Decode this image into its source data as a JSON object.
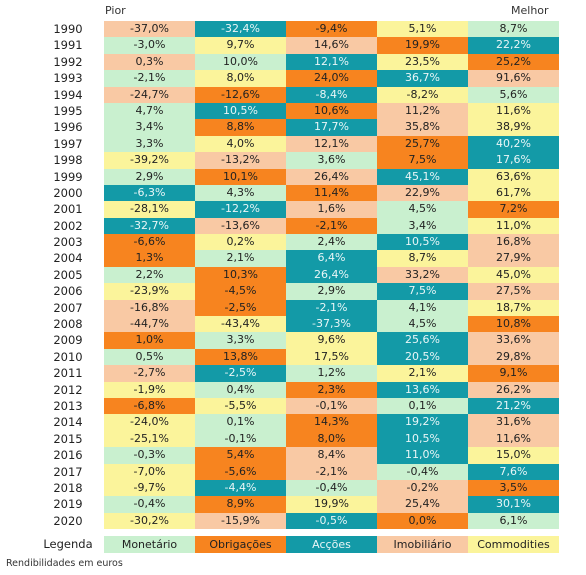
{
  "colors": {
    "mon": "#c9f0cf",
    "obr": "#f7841f",
    "acc": "#139aa7",
    "imo": "#f9c9a4",
    "com": "#fbf49b"
  },
  "header": {
    "worst": "Pior",
    "best": "Melhor"
  },
  "chart_data": {
    "type": "table",
    "columns": [
      "Monetário",
      "Obrigações",
      "Acções",
      "Imobiliário",
      "Commodities"
    ],
    "rows": [
      {
        "year": "1990",
        "cells": [
          {
            "v": "-37,0%",
            "c": "imo"
          },
          {
            "v": "-32,4%",
            "c": "acc"
          },
          {
            "v": "-9,4%",
            "c": "obr"
          },
          {
            "v": "5,1%",
            "c": "com"
          },
          {
            "v": "8,7%",
            "c": "mon"
          }
        ]
      },
      {
        "year": "1991",
        "cells": [
          {
            "v": "-3,0%",
            "c": "mon"
          },
          {
            "v": "9,7%",
            "c": "com"
          },
          {
            "v": "14,6%",
            "c": "imo"
          },
          {
            "v": "19,9%",
            "c": "obr"
          },
          {
            "v": "22,2%",
            "c": "acc"
          }
        ]
      },
      {
        "year": "1992",
        "cells": [
          {
            "v": "0,3%",
            "c": "imo"
          },
          {
            "v": "10,0%",
            "c": "mon"
          },
          {
            "v": "12,1%",
            "c": "acc"
          },
          {
            "v": "23,5%",
            "c": "com"
          },
          {
            "v": "25,2%",
            "c": "obr"
          }
        ]
      },
      {
        "year": "1993",
        "cells": [
          {
            "v": "-2,1%",
            "c": "mon"
          },
          {
            "v": "8,0%",
            "c": "com"
          },
          {
            "v": "24,0%",
            "c": "obr"
          },
          {
            "v": "36,7%",
            "c": "acc"
          },
          {
            "v": "91,6%",
            "c": "imo"
          }
        ]
      },
      {
        "year": "1994",
        "cells": [
          {
            "v": "-24,7%",
            "c": "imo"
          },
          {
            "v": "-12,6%",
            "c": "obr"
          },
          {
            "v": "-8,4%",
            "c": "acc"
          },
          {
            "v": "-8,2%",
            "c": "com"
          },
          {
            "v": "5,6%",
            "c": "mon"
          }
        ]
      },
      {
        "year": "1995",
        "cells": [
          {
            "v": "4,7%",
            "c": "mon"
          },
          {
            "v": "10,5%",
            "c": "acc"
          },
          {
            "v": "10,6%",
            "c": "obr"
          },
          {
            "v": "11,2%",
            "c": "imo"
          },
          {
            "v": "11,6%",
            "c": "com"
          }
        ]
      },
      {
        "year": "1996",
        "cells": [
          {
            "v": "3,4%",
            "c": "mon"
          },
          {
            "v": "8,8%",
            "c": "obr"
          },
          {
            "v": "17,7%",
            "c": "acc"
          },
          {
            "v": "35,8%",
            "c": "imo"
          },
          {
            "v": "38,9%",
            "c": "com"
          }
        ]
      },
      {
        "year": "1997",
        "cells": [
          {
            "v": "3,3%",
            "c": "mon"
          },
          {
            "v": "4,0%",
            "c": "com"
          },
          {
            "v": "12,1%",
            "c": "imo"
          },
          {
            "v": "25,7%",
            "c": "obr"
          },
          {
            "v": "40,2%",
            "c": "acc"
          }
        ]
      },
      {
        "year": "1998",
        "cells": [
          {
            "v": "-39,2%",
            "c": "com"
          },
          {
            "v": "-13,2%",
            "c": "imo"
          },
          {
            "v": "3,6%",
            "c": "mon"
          },
          {
            "v": "7,5%",
            "c": "obr"
          },
          {
            "v": "17,6%",
            "c": "acc"
          }
        ]
      },
      {
        "year": "1999",
        "cells": [
          {
            "v": "2,9%",
            "c": "mon"
          },
          {
            "v": "10,1%",
            "c": "obr"
          },
          {
            "v": "26,4%",
            "c": "imo"
          },
          {
            "v": "45,1%",
            "c": "acc"
          },
          {
            "v": "63,6%",
            "c": "com"
          }
        ]
      },
      {
        "year": "2000",
        "cells": [
          {
            "v": "-6,3%",
            "c": "acc"
          },
          {
            "v": "4,3%",
            "c": "mon"
          },
          {
            "v": "11,4%",
            "c": "obr"
          },
          {
            "v": "22,9%",
            "c": "imo"
          },
          {
            "v": "61,7%",
            "c": "com"
          }
        ]
      },
      {
        "year": "2001",
        "cells": [
          {
            "v": "-28,1%",
            "c": "com"
          },
          {
            "v": "-12,2%",
            "c": "acc"
          },
          {
            "v": "1,6%",
            "c": "imo"
          },
          {
            "v": "4,5%",
            "c": "mon"
          },
          {
            "v": "7,2%",
            "c": "obr"
          }
        ]
      },
      {
        "year": "2002",
        "cells": [
          {
            "v": "-32,7%",
            "c": "acc"
          },
          {
            "v": "-13,6%",
            "c": "imo"
          },
          {
            "v": "-2,1%",
            "c": "obr"
          },
          {
            "v": "3,4%",
            "c": "mon"
          },
          {
            "v": "11,0%",
            "c": "com"
          }
        ]
      },
      {
        "year": "2003",
        "cells": [
          {
            "v": "-6,6%",
            "c": "obr"
          },
          {
            "v": "0,2%",
            "c": "com"
          },
          {
            "v": "2,4%",
            "c": "mon"
          },
          {
            "v": "10,5%",
            "c": "acc"
          },
          {
            "v": "16,8%",
            "c": "imo"
          }
        ]
      },
      {
        "year": "2004",
        "cells": [
          {
            "v": "1,3%",
            "c": "obr"
          },
          {
            "v": "2,1%",
            "c": "mon"
          },
          {
            "v": "6,4%",
            "c": "acc"
          },
          {
            "v": "8,7%",
            "c": "com"
          },
          {
            "v": "27,9%",
            "c": "imo"
          }
        ]
      },
      {
        "year": "2005",
        "cells": [
          {
            "v": "2,2%",
            "c": "mon"
          },
          {
            "v": "10,3%",
            "c": "obr"
          },
          {
            "v": "26,4%",
            "c": "acc"
          },
          {
            "v": "33,2%",
            "c": "imo"
          },
          {
            "v": "45,0%",
            "c": "com"
          }
        ]
      },
      {
        "year": "2006",
        "cells": [
          {
            "v": "-23,9%",
            "c": "com"
          },
          {
            "v": "-4,5%",
            "c": "obr"
          },
          {
            "v": "2,9%",
            "c": "mon"
          },
          {
            "v": "7,5%",
            "c": "acc"
          },
          {
            "v": "27,5%",
            "c": "imo"
          }
        ]
      },
      {
        "year": "2007",
        "cells": [
          {
            "v": "-16,8%",
            "c": "imo"
          },
          {
            "v": "-2,5%",
            "c": "obr"
          },
          {
            "v": "-2,1%",
            "c": "acc"
          },
          {
            "v": "4,1%",
            "c": "mon"
          },
          {
            "v": "18,7%",
            "c": "com"
          }
        ]
      },
      {
        "year": "2008",
        "cells": [
          {
            "v": "-44,7%",
            "c": "imo"
          },
          {
            "v": "-43,4%",
            "c": "com"
          },
          {
            "v": "-37,3%",
            "c": "acc"
          },
          {
            "v": "4,5%",
            "c": "mon"
          },
          {
            "v": "10,8%",
            "c": "obr"
          }
        ]
      },
      {
        "year": "2009",
        "cells": [
          {
            "v": "1,0%",
            "c": "obr"
          },
          {
            "v": "3,3%",
            "c": "mon"
          },
          {
            "v": "9,6%",
            "c": "com"
          },
          {
            "v": "25,6%",
            "c": "acc"
          },
          {
            "v": "33,6%",
            "c": "imo"
          }
        ]
      },
      {
        "year": "2010",
        "cells": [
          {
            "v": "0,5%",
            "c": "mon"
          },
          {
            "v": "13,8%",
            "c": "obr"
          },
          {
            "v": "17,5%",
            "c": "com"
          },
          {
            "v": "20,5%",
            "c": "acc"
          },
          {
            "v": "29,8%",
            "c": "imo"
          }
        ]
      },
      {
        "year": "2011",
        "cells": [
          {
            "v": "-2,7%",
            "c": "imo"
          },
          {
            "v": "-2,5%",
            "c": "acc"
          },
          {
            "v": "1,2%",
            "c": "mon"
          },
          {
            "v": "2,1%",
            "c": "com"
          },
          {
            "v": "9,1%",
            "c": "obr"
          }
        ]
      },
      {
        "year": "2012",
        "cells": [
          {
            "v": "-1,9%",
            "c": "com"
          },
          {
            "v": "0,4%",
            "c": "mon"
          },
          {
            "v": "2,3%",
            "c": "obr"
          },
          {
            "v": "13,6%",
            "c": "acc"
          },
          {
            "v": "26,2%",
            "c": "imo"
          }
        ]
      },
      {
        "year": "2013",
        "cells": [
          {
            "v": "-6,8%",
            "c": "obr"
          },
          {
            "v": "-5,5%",
            "c": "com"
          },
          {
            "v": "-0,1%",
            "c": "imo"
          },
          {
            "v": "0,1%",
            "c": "mon"
          },
          {
            "v": "21,2%",
            "c": "acc"
          }
        ]
      },
      {
        "year": "2014",
        "cells": [
          {
            "v": "-24,0%",
            "c": "com"
          },
          {
            "v": "0,1%",
            "c": "mon"
          },
          {
            "v": "14,3%",
            "c": "obr"
          },
          {
            "v": "19,2%",
            "c": "acc"
          },
          {
            "v": "31,6%",
            "c": "imo"
          }
        ]
      },
      {
        "year": "2015",
        "cells": [
          {
            "v": "-25,1%",
            "c": "com"
          },
          {
            "v": "-0,1%",
            "c": "mon"
          },
          {
            "v": "8,0%",
            "c": "obr"
          },
          {
            "v": "10,5%",
            "c": "acc"
          },
          {
            "v": "11,6%",
            "c": "imo"
          }
        ]
      },
      {
        "year": "2016",
        "cells": [
          {
            "v": "-0,3%",
            "c": "mon"
          },
          {
            "v": "5,4%",
            "c": "obr"
          },
          {
            "v": "8,4%",
            "c": "imo"
          },
          {
            "v": "11,0%",
            "c": "acc"
          },
          {
            "v": "15,0%",
            "c": "com"
          }
        ]
      },
      {
        "year": "2017",
        "cells": [
          {
            "v": "-7,0%",
            "c": "com"
          },
          {
            "v": "-5,6%",
            "c": "obr"
          },
          {
            "v": "-2,1%",
            "c": "imo"
          },
          {
            "v": "-0,4%",
            "c": "mon"
          },
          {
            "v": "7,6%",
            "c": "acc"
          }
        ]
      },
      {
        "year": "2018",
        "cells": [
          {
            "v": "-9,7%",
            "c": "com"
          },
          {
            "v": "-4,4%",
            "c": "acc"
          },
          {
            "v": "-0,4%",
            "c": "mon"
          },
          {
            "v": "-0,2%",
            "c": "imo"
          },
          {
            "v": "3,5%",
            "c": "obr"
          }
        ]
      },
      {
        "year": "2019",
        "cells": [
          {
            "v": "-0,4%",
            "c": "mon"
          },
          {
            "v": "8,9%",
            "c": "obr"
          },
          {
            "v": "19,9%",
            "c": "com"
          },
          {
            "v": "25,4%",
            "c": "imo"
          },
          {
            "v": "30,1%",
            "c": "acc"
          }
        ]
      },
      {
        "year": "2020",
        "cells": [
          {
            "v": "-30,2%",
            "c": "com"
          },
          {
            "v": "-15,9%",
            "c": "imo"
          },
          {
            "v": "-0,5%",
            "c": "acc"
          },
          {
            "v": "0,0%",
            "c": "obr"
          },
          {
            "v": "6,1%",
            "c": "mon"
          }
        ]
      }
    ]
  },
  "legend": {
    "title": "Legenda",
    "items": [
      {
        "label": "Monetário",
        "c": "mon"
      },
      {
        "label": "Obrigações",
        "c": "obr"
      },
      {
        "label": "Acções",
        "c": "acc"
      },
      {
        "label": "Imobiliário",
        "c": "imo"
      },
      {
        "label": "Commodities",
        "c": "com"
      }
    ]
  },
  "footnote": "Rendibilidades em euros"
}
